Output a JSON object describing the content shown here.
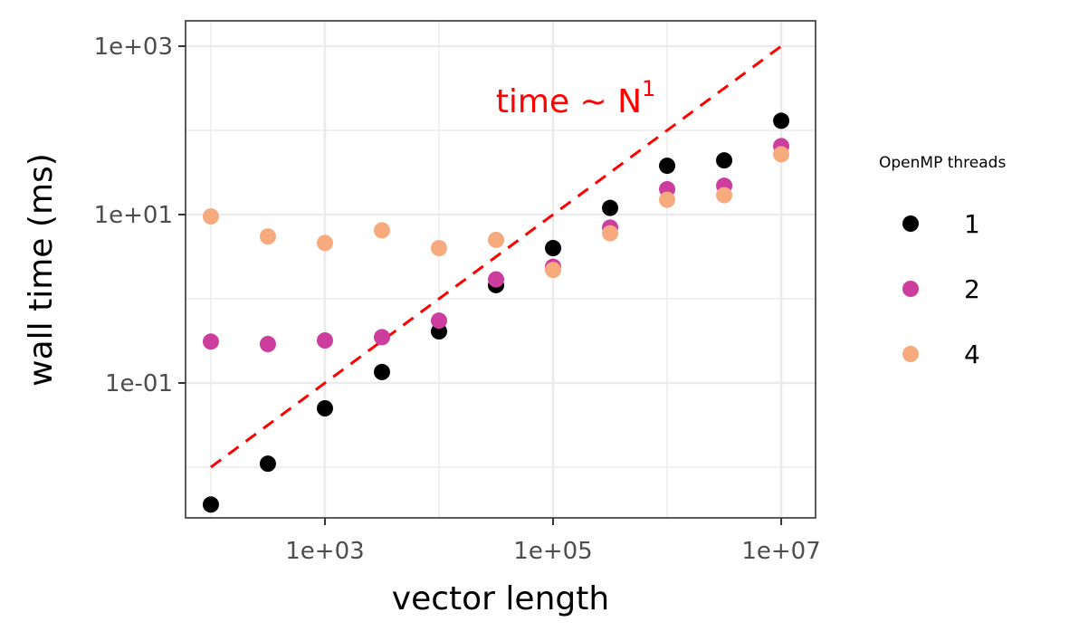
{
  "chart_data": {
    "type": "scatter",
    "xlabel": "vector length",
    "ylabel": "wall time (ms)",
    "x_scale": "log10",
    "y_scale": "log10",
    "xlim": [
      60,
      20000000
    ],
    "ylim": [
      0.0025,
      2000
    ],
    "x_ticks": [
      {
        "value": 1000,
        "label": "1e+03"
      },
      {
        "value": 100000,
        "label": "1e+05"
      },
      {
        "value": 10000000,
        "label": "1e+07"
      }
    ],
    "y_ticks": [
      {
        "value": 0.1,
        "label": "1e-01"
      },
      {
        "value": 10,
        "label": "1e+01"
      },
      {
        "value": 1000,
        "label": "1e+03"
      }
    ],
    "grid": true,
    "legend": {
      "title": "OpenMP threads",
      "position": "right"
    },
    "x": [
      100,
      316,
      1000,
      3162,
      10000,
      31623,
      100000,
      316228,
      1000000,
      3162278,
      10000000
    ],
    "series": [
      {
        "name": "1",
        "color": "#000000",
        "values": [
          0.0036,
          0.011,
          0.05,
          0.135,
          0.41,
          1.45,
          4.0,
          12.0,
          38.0,
          44.0,
          130.0
        ]
      },
      {
        "name": "2",
        "color": "#cc3d9e",
        "values": [
          0.31,
          0.29,
          0.32,
          0.35,
          0.55,
          1.7,
          2.4,
          7.0,
          20.0,
          22.0,
          65.0
        ]
      },
      {
        "name": "4",
        "color": "#f6aa7e",
        "values": [
          9.5,
          5.5,
          4.6,
          6.5,
          4.0,
          5.0,
          2.2,
          6.0,
          15.0,
          17.0,
          52.0
        ]
      }
    ],
    "reference_line": {
      "x": [
        100,
        10000000
      ],
      "y": [
        0.01,
        1000
      ],
      "color": "#ff0000",
      "style": "dashed",
      "annotation": {
        "text": "time ~ N",
        "superscript": "1",
        "x": 316228,
        "y": 220
      }
    }
  }
}
